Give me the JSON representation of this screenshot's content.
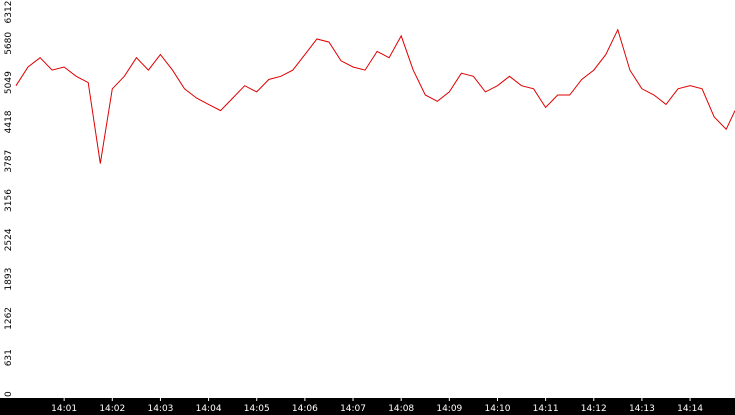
{
  "chart_data": {
    "type": "line",
    "title": "",
    "xlabel": "",
    "ylabel": "",
    "grid": false,
    "legend": "none",
    "ylim": [
      0,
      6312
    ],
    "y_ticks": [
      "0",
      "631",
      "1262",
      "1893",
      "2524",
      "3156",
      "3787",
      "4418",
      "5049",
      "5680",
      "6312"
    ],
    "x_range": [
      "14:00:00",
      "14:14:56"
    ],
    "x_ticks": [
      "14:01",
      "14:02",
      "14:03",
      "14:04",
      "14:05",
      "14:06",
      "14:07",
      "14:08",
      "14:09",
      "14:10",
      "14:11",
      "14:12",
      "14:13",
      "14:14"
    ],
    "colors": {
      "line": "#dd0000",
      "axis_bar": "#000000",
      "axis_tick": "#ffffff",
      "background": "#ffffff"
    },
    "series": [
      {
        "x": [
          "14:00:00",
          "14:00:15",
          "14:00:30",
          "14:00:45",
          "14:01:00",
          "14:01:15",
          "14:01:30",
          "14:01:45",
          "14:02:00",
          "14:02:15",
          "14:02:30",
          "14:02:45",
          "14:03:00",
          "14:03:15",
          "14:03:30",
          "14:03:45",
          "14:04:00",
          "14:04:15",
          "14:04:30",
          "14:04:45",
          "14:05:00",
          "14:05:15",
          "14:05:30",
          "14:05:45",
          "14:06:00",
          "14:06:15",
          "14:06:30",
          "14:06:45",
          "14:07:00",
          "14:07:15",
          "14:07:30",
          "14:07:45",
          "14:08:00",
          "14:08:15",
          "14:08:30",
          "14:08:45",
          "14:09:00",
          "14:09:15",
          "14:09:30",
          "14:09:45",
          "14:10:00",
          "14:10:15",
          "14:10:30",
          "14:10:45",
          "14:11:00",
          "14:11:15",
          "14:11:30",
          "14:11:45",
          "14:12:00",
          "14:12:15",
          "14:12:30",
          "14:12:45",
          "14:13:00",
          "14:13:15",
          "14:13:30",
          "14:13:45",
          "14:14:00",
          "14:14:15",
          "14:14:30",
          "14:14:45",
          "14:14:56"
        ],
        "values": [
          5000,
          5300,
          5450,
          5250,
          5300,
          5150,
          5050,
          3750,
          4950,
          5150,
          5450,
          5250,
          5500,
          5250,
          4950,
          4800,
          4700,
          4600,
          4800,
          5000,
          4900,
          5100,
          5150,
          5250,
          5500,
          5750,
          5700,
          5400,
          5300,
          5250,
          5550,
          5450,
          5800,
          5250,
          4850,
          4750,
          4900,
          5200,
          5150,
          4900,
          5000,
          5150,
          5000,
          4950,
          4650,
          4850,
          4850,
          5100,
          5250,
          5500,
          5900,
          5250,
          4950,
          4850,
          4700,
          4950,
          5000,
          4950,
          4500,
          4300,
          4600
        ]
      }
    ]
  }
}
